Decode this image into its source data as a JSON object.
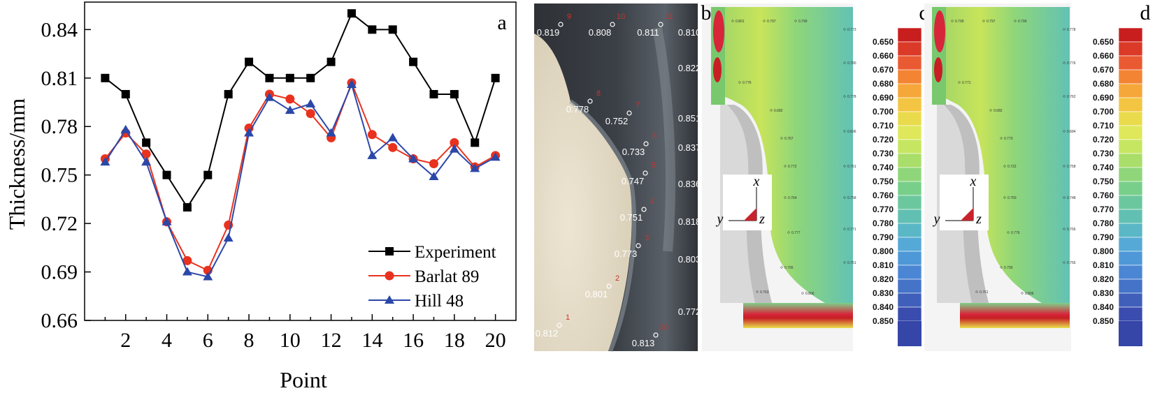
{
  "chart_data": {
    "type": "line",
    "xlabel": "Point",
    "ylabel": "Thickness/mm",
    "x": [
      1,
      2,
      3,
      4,
      5,
      6,
      7,
      8,
      9,
      10,
      11,
      12,
      13,
      14,
      15,
      16,
      17,
      18,
      19,
      20
    ],
    "xticks": [
      2,
      4,
      6,
      8,
      10,
      12,
      14,
      16,
      18,
      20
    ],
    "yticks": [
      0.66,
      0.69,
      0.72,
      0.75,
      0.78,
      0.81,
      0.84
    ],
    "ytick_labels": [
      "0.66",
      "0.69",
      "0.72",
      "0.75",
      "0.78",
      "0.81",
      "0.84"
    ],
    "xlim": [
      0,
      21
    ],
    "ylim": [
      0.66,
      0.857
    ],
    "legend_position": "bottom-right",
    "series": [
      {
        "name": "Experiment",
        "color": "#000000",
        "marker": "square",
        "values": [
          0.81,
          0.8,
          0.77,
          0.75,
          0.73,
          0.75,
          0.8,
          0.82,
          0.81,
          0.81,
          0.81,
          0.82,
          0.85,
          0.84,
          0.84,
          0.82,
          0.8,
          0.8,
          0.77,
          0.81
        ]
      },
      {
        "name": "Barlat 89",
        "color": "#e8321e",
        "marker": "circle",
        "values": [
          0.76,
          0.776,
          0.763,
          0.721,
          0.697,
          0.691,
          0.719,
          0.779,
          0.8,
          0.797,
          0.788,
          0.773,
          0.807,
          0.775,
          0.767,
          0.76,
          0.757,
          0.77,
          0.755,
          0.762
        ]
      },
      {
        "name": "Hill 48",
        "color": "#2b47a8",
        "marker": "triangle",
        "values": [
          0.758,
          0.778,
          0.758,
          0.721,
          0.69,
          0.687,
          0.711,
          0.776,
          0.798,
          0.79,
          0.794,
          0.776,
          0.806,
          0.762,
          0.773,
          0.76,
          0.749,
          0.766,
          0.754,
          0.761
        ]
      }
    ]
  },
  "panels": {
    "a": "a",
    "b": "b",
    "c": "c",
    "d": "d"
  },
  "photo": {
    "labels": [
      {
        "text": "0.819",
        "num": "9"
      },
      {
        "text": "0.808",
        "num": "10"
      },
      {
        "text": "0.811",
        "num": "11"
      },
      {
        "text": "0.810",
        "num": "12"
      },
      {
        "text": "0.822",
        "num": "13"
      },
      {
        "text": "0.778",
        "num": "8"
      },
      {
        "text": "0.851",
        "num": "14"
      },
      {
        "text": "0.752",
        "num": "7"
      },
      {
        "text": "0.837",
        "num": "15"
      },
      {
        "text": "0.733",
        "num": "6"
      },
      {
        "text": "0.836",
        "num": "16"
      },
      {
        "text": "0.747",
        "num": "5"
      },
      {
        "text": "0.818",
        "num": "17"
      },
      {
        "text": "0.751",
        "num": "4"
      },
      {
        "text": "0.803",
        "num": "18"
      },
      {
        "text": "0.773",
        "num": "3"
      },
      {
        "text": "0.801",
        "num": "2"
      },
      {
        "text": "0.772",
        "num": "19"
      },
      {
        "text": "0.812",
        "num": "1"
      },
      {
        "text": "0.813",
        "num": "20"
      }
    ]
  },
  "contour_scale": [
    "0.650",
    "0.660",
    "0.670",
    "0.680",
    "0.690",
    "0.700",
    "0.710",
    "0.720",
    "0.730",
    "0.740",
    "0.750",
    "0.760",
    "0.770",
    "0.780",
    "0.790",
    "0.800",
    "0.810",
    "0.820",
    "0.830",
    "0.840",
    "0.850"
  ],
  "contour_colors": [
    "#c81e1e",
    "#dc3a28",
    "#ea5a32",
    "#f38434",
    "#f6a73a",
    "#f3c542",
    "#eadb4c",
    "#dfe85a",
    "#c6e662",
    "#a9de6a",
    "#8fd67a",
    "#78cf8a",
    "#6bc79e",
    "#61c0b2",
    "#5ab7c6",
    "#55a9d6",
    "#4f98d8",
    "#4b86d4",
    "#4573c8",
    "#3f5fba",
    "#3a4cae"
  ],
  "contour_b_labels": [
    "0.801",
    "0.797",
    "0.799",
    "0.773",
    "0.780",
    "0.776",
    "0.778",
    "0.682",
    "0.696",
    "0.767",
    "0.761",
    "0.772",
    "0.758",
    "0.764",
    "0.771",
    "0.777",
    "0.765",
    "0.761",
    "0.763",
    "0.806"
  ],
  "contour_d_labels": [
    "0.799",
    "0.797",
    "0.799",
    "0.778",
    "0.776",
    "0.771",
    "0.762",
    "0.682",
    "0.684",
    "0.773",
    "0.758",
    "0.722",
    "0.748",
    "0.750",
    "0.756",
    "0.776",
    "0.795",
    "0.756",
    "0.761",
    "0.806"
  ],
  "axes_triad": {
    "x": "x",
    "y": "y",
    "z": "z"
  }
}
